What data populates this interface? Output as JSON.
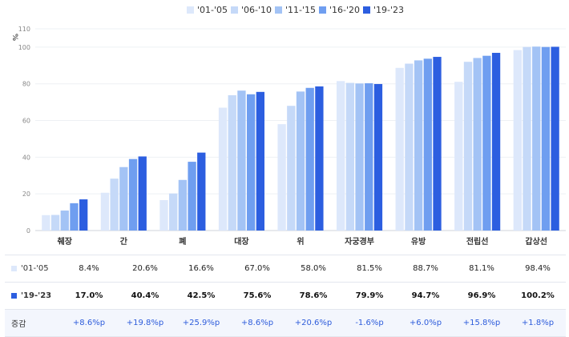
{
  "chart_data": {
    "type": "bar",
    "ylabel": "%",
    "ylim": [
      0,
      110
    ],
    "yticks": [
      0,
      20,
      40,
      60,
      80,
      100,
      110
    ],
    "categories": [
      "췌장",
      "간",
      "폐",
      "대장",
      "위",
      "자궁경부",
      "유방",
      "전립선",
      "갑상선"
    ],
    "series": [
      {
        "name": "'01-'05",
        "color": "#dde8fb",
        "values": [
          8.4,
          20.6,
          16.6,
          67.0,
          58.0,
          81.5,
          88.7,
          81.1,
          98.4
        ]
      },
      {
        "name": "'06-'10",
        "color": "#c5d9f8",
        "values": [
          8.5,
          28.3,
          20.2,
          73.8,
          68.0,
          80.5,
          91.0,
          92.0,
          100.1
        ]
      },
      {
        "name": "'11-'15",
        "color": "#a3c3f5",
        "values": [
          10.9,
          34.6,
          27.6,
          76.3,
          75.8,
          80.2,
          92.8,
          94.1,
          100.3
        ]
      },
      {
        "name": "'16-'20",
        "color": "#6f9ef0",
        "values": [
          14.9,
          39.0,
          37.5,
          74.3,
          77.8,
          80.3,
          93.7,
          95.3,
          100.1
        ]
      },
      {
        "name": "'19-'23",
        "color": "#2c5ee0",
        "values": [
          17.0,
          40.4,
          42.5,
          75.6,
          78.6,
          79.9,
          94.7,
          96.9,
          100.2
        ]
      }
    ]
  },
  "table": {
    "rows": [
      {
        "label": "'01-'05",
        "color": "#dde8fb",
        "values": [
          "8.4%",
          "20.6%",
          "16.6%",
          "67.0%",
          "58.0%",
          "81.5%",
          "88.7%",
          "81.1%",
          "98.4%"
        ]
      },
      {
        "label": "'19-'23",
        "color": "#2c5ee0",
        "values": [
          "17.0%",
          "40.4%",
          "42.5%",
          "75.6%",
          "78.6%",
          "79.9%",
          "94.7%",
          "96.9%",
          "100.2%"
        ]
      },
      {
        "label": "증감",
        "values": [
          "+8.6%p",
          "+19.8%p",
          "+25.9%p",
          "+8.6%p",
          "+20.6%p",
          "-1.6%p",
          "+6.0%p",
          "+15.8%p",
          "+1.8%p"
        ]
      }
    ]
  }
}
